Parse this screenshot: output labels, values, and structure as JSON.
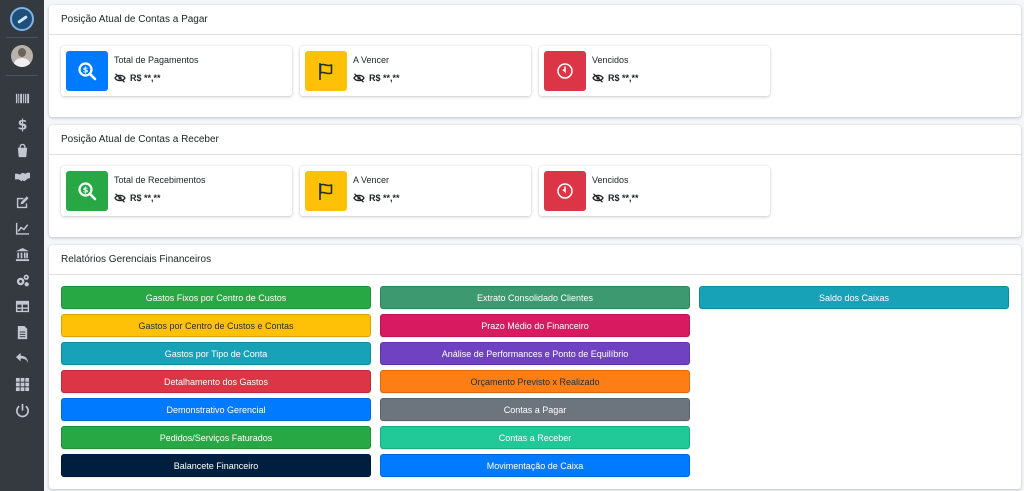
{
  "sidebar": {
    "icons": [
      "logo-icon",
      "user-avatar",
      "barcode-icon",
      "dollar-icon",
      "shopping-bag-icon",
      "handshake-icon",
      "edit-icon",
      "chart-line-icon",
      "bank-icon",
      "cogs-icon",
      "table-icon",
      "document-icon",
      "undo-icon",
      "grid-icon",
      "power-icon"
    ]
  },
  "payables": {
    "title": "Posição Atual de Contas a Pagar",
    "boxes": [
      {
        "label": "Total de Pagamentos",
        "value": "R$ **,**",
        "color": "#007bff",
        "icon": "search-dollar-icon"
      },
      {
        "label": "A Vencer",
        "value": "R$ **,**",
        "color": "#ffc107",
        "icon": "flag-icon"
      },
      {
        "label": "Vencidos",
        "value": "R$ **,**",
        "color": "#dc3545",
        "icon": "clock-icon"
      }
    ]
  },
  "receivables": {
    "title": "Posição Atual de Contas a Receber",
    "boxes": [
      {
        "label": "Total de Recebimentos",
        "value": "R$ **,**",
        "color": "#28a745",
        "icon": "search-dollar-icon"
      },
      {
        "label": "A Vencer",
        "value": "R$ **,**",
        "color": "#ffc107",
        "icon": "flag-icon"
      },
      {
        "label": "Vencidos",
        "value": "R$ **,**",
        "color": "#dc3545",
        "icon": "clock-icon"
      }
    ]
  },
  "reports": {
    "title": "Relatórios Gerenciais Financeiros",
    "columns": [
      [
        {
          "label": "Gastos Fixos por Centro de Custos",
          "bg": "#28a745",
          "fg": "#ffffff"
        },
        {
          "label": "Gastos por Centro de Custos e Contas",
          "bg": "#ffc107",
          "fg": "#1f2d3d"
        },
        {
          "label": "Gastos por Tipo de Conta",
          "bg": "#17a2b8",
          "fg": "#ffffff"
        },
        {
          "label": "Detalhamento dos Gastos",
          "bg": "#dc3545",
          "fg": "#ffffff"
        },
        {
          "label": "Demonstrativo Gerencial",
          "bg": "#007bff",
          "fg": "#ffffff"
        },
        {
          "label": "Pedidos/Serviços Faturados",
          "bg": "#28a745",
          "fg": "#ffffff"
        },
        {
          "label": "Balancete Financeiro",
          "bg": "#001f3f",
          "fg": "#ffffff"
        }
      ],
      [
        {
          "label": "Extrato Consolidado Clientes",
          "bg": "#3d9970",
          "fg": "#ffffff"
        },
        {
          "label": "Prazo Médio do Financeiro",
          "bg": "#d81b60",
          "fg": "#ffffff"
        },
        {
          "label": "Análise de Performances e Ponto de Equilíbrio",
          "bg": "#6f42c1",
          "fg": "#ffffff"
        },
        {
          "label": "Orçamento Previsto x Realizado",
          "bg": "#fd7e14",
          "fg": "#1f2d3d"
        },
        {
          "label": "Contas a Pagar",
          "bg": "#6c757d",
          "fg": "#ffffff"
        },
        {
          "label": "Contas a Receber",
          "bg": "#20c997",
          "fg": "#ffffff"
        },
        {
          "label": "Movimentação de Caixa",
          "bg": "#007bff",
          "fg": "#ffffff"
        }
      ],
      [
        {
          "label": "Saldo dos Caixas",
          "bg": "#17a2b8",
          "fg": "#ffffff"
        }
      ]
    ]
  }
}
